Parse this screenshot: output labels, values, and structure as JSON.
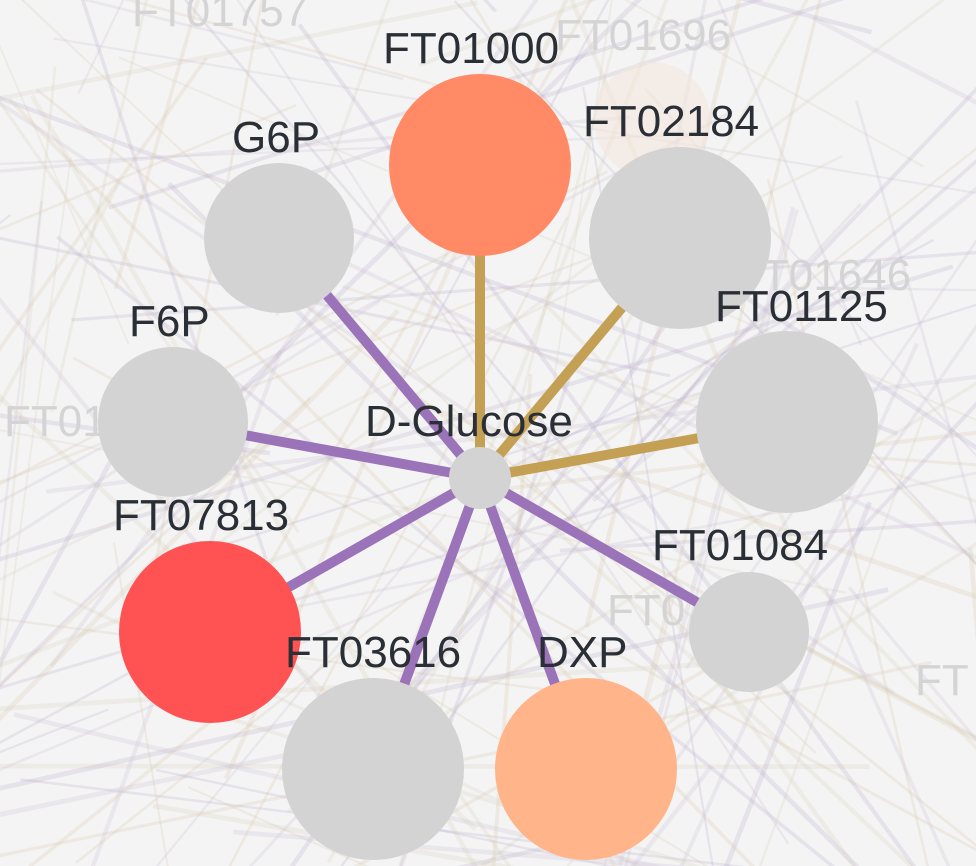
{
  "network": {
    "center": {
      "id": "D-Glucose",
      "label": "D-Glucose",
      "color": "#d3d3d3"
    },
    "nodes": [
      {
        "id": "FT01000",
        "label": "FT01000",
        "color": "#ff8a65",
        "edge_color": "#c4a055"
      },
      {
        "id": "FT02184",
        "label": "FT02184",
        "color": "#d3d3d3",
        "edge_color": "#c4a055"
      },
      {
        "id": "FT01125",
        "label": "FT01125",
        "color": "#d3d3d3",
        "edge_color": "#c4a055"
      },
      {
        "id": "FT01084",
        "label": "FT01084",
        "color": "#d3d3d3",
        "edge_color": "#9b73b8"
      },
      {
        "id": "DXP",
        "label": "DXP",
        "color": "#ffb48a",
        "edge_color": "#9b73b8"
      },
      {
        "id": "FT03616",
        "label": "FT03616",
        "color": "#d3d3d3",
        "edge_color": "#9b73b8"
      },
      {
        "id": "FT07813",
        "label": "FT07813",
        "color": "#ff5252",
        "edge_color": "#9b73b8"
      },
      {
        "id": "F6P",
        "label": "F6P",
        "color": "#d3d3d3",
        "edge_color": "#9b73b8"
      },
      {
        "id": "G6P",
        "label": "G6P",
        "color": "#d3d3d3",
        "edge_color": "#9b73b8"
      }
    ],
    "background_labels": [
      "FT01757",
      "FT01696",
      "FT01646",
      "FT01",
      "FT0",
      "FT"
    ]
  }
}
